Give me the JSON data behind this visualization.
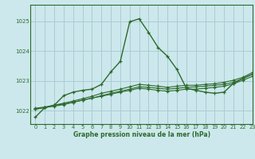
{
  "title": "Graphe pression niveau de la mer (hPa)",
  "bg_color": "#cce8ec",
  "line_color": "#2d6a2d",
  "grid_color": "#aaccd4",
  "xlim": [
    -0.5,
    23
  ],
  "ylim": [
    1021.55,
    1025.55
  ],
  "yticks": [
    1022,
    1023,
    1024,
    1025
  ],
  "xticks": [
    0,
    1,
    2,
    3,
    4,
    5,
    6,
    7,
    8,
    9,
    10,
    11,
    12,
    13,
    14,
    15,
    16,
    17,
    18,
    19,
    20,
    21,
    22,
    23
  ],
  "series": [
    [
      1021.78,
      1022.1,
      1022.18,
      1022.5,
      1022.62,
      1022.68,
      1022.72,
      1022.88,
      1023.3,
      1023.65,
      1024.98,
      1025.08,
      1024.62,
      1024.12,
      1023.82,
      1023.38,
      1022.75,
      1022.68,
      1022.62,
      1022.58,
      1022.62,
      1022.92,
      1023.08,
      1023.22
    ],
    [
      1022.08,
      1022.12,
      1022.18,
      1022.22,
      1022.28,
      1022.35,
      1022.42,
      1022.48,
      1022.55,
      1022.62,
      1022.68,
      1022.75,
      1022.72,
      1022.68,
      1022.65,
      1022.68,
      1022.72,
      1022.72,
      1022.75,
      1022.78,
      1022.82,
      1022.9,
      1023.02,
      1023.15
    ],
    [
      1022.05,
      1022.1,
      1022.15,
      1022.2,
      1022.28,
      1022.35,
      1022.42,
      1022.5,
      1022.58,
      1022.65,
      1022.72,
      1022.8,
      1022.78,
      1022.75,
      1022.72,
      1022.75,
      1022.78,
      1022.8,
      1022.82,
      1022.85,
      1022.88,
      1022.95,
      1023.08,
      1023.22
    ],
    [
      1022.05,
      1022.1,
      1022.18,
      1022.25,
      1022.32,
      1022.4,
      1022.48,
      1022.58,
      1022.65,
      1022.72,
      1022.8,
      1022.88,
      1022.85,
      1022.82,
      1022.78,
      1022.82,
      1022.85,
      1022.85,
      1022.88,
      1022.9,
      1022.95,
      1023.02,
      1023.12,
      1023.28
    ]
  ]
}
